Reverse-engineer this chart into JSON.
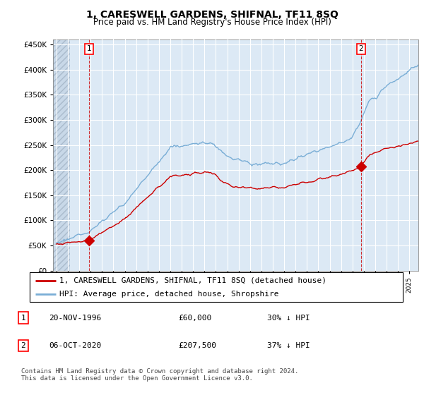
{
  "title": "1, CARESWELL GARDENS, SHIFNAL, TF11 8SQ",
  "subtitle": "Price paid vs. HM Land Registry's House Price Index (HPI)",
  "ylim": [
    0,
    460000
  ],
  "yticks": [
    0,
    50000,
    100000,
    150000,
    200000,
    250000,
    300000,
    350000,
    400000,
    450000
  ],
  "ytick_labels": [
    "£0",
    "£50K",
    "£100K",
    "£150K",
    "£200K",
    "£250K",
    "£300K",
    "£350K",
    "£400K",
    "£450K"
  ],
  "xlim_start": 1993.7,
  "xlim_end": 2025.8,
  "background_color": "#ffffff",
  "plot_bg_color": "#dce9f5",
  "grid_color": "#ffffff",
  "hpi_color": "#7aaed6",
  "price_color": "#cc0000",
  "hatch_color": "#c8d8e8",
  "transaction1_year": 1996.88,
  "transaction1_price": 60000,
  "transaction1_label": "1",
  "transaction2_year": 2020.75,
  "transaction2_price": 207500,
  "transaction2_label": "2",
  "legend_property": "1, CARESWELL GARDENS, SHIFNAL, TF11 8SQ (detached house)",
  "legend_hpi": "HPI: Average price, detached house, Shropshire",
  "table_rows": [
    {
      "num": "1",
      "date": "20-NOV-1996",
      "price": "£60,000",
      "hpi": "30% ↓ HPI"
    },
    {
      "num": "2",
      "date": "06-OCT-2020",
      "price": "£207,500",
      "hpi": "37% ↓ HPI"
    }
  ],
  "footnote": "Contains HM Land Registry data © Crown copyright and database right 2024.\nThis data is licensed under the Open Government Licence v3.0.",
  "title_fontsize": 10,
  "subtitle_fontsize": 8.5,
  "axis_fontsize": 7.5,
  "legend_fontsize": 8,
  "table_fontsize": 8
}
